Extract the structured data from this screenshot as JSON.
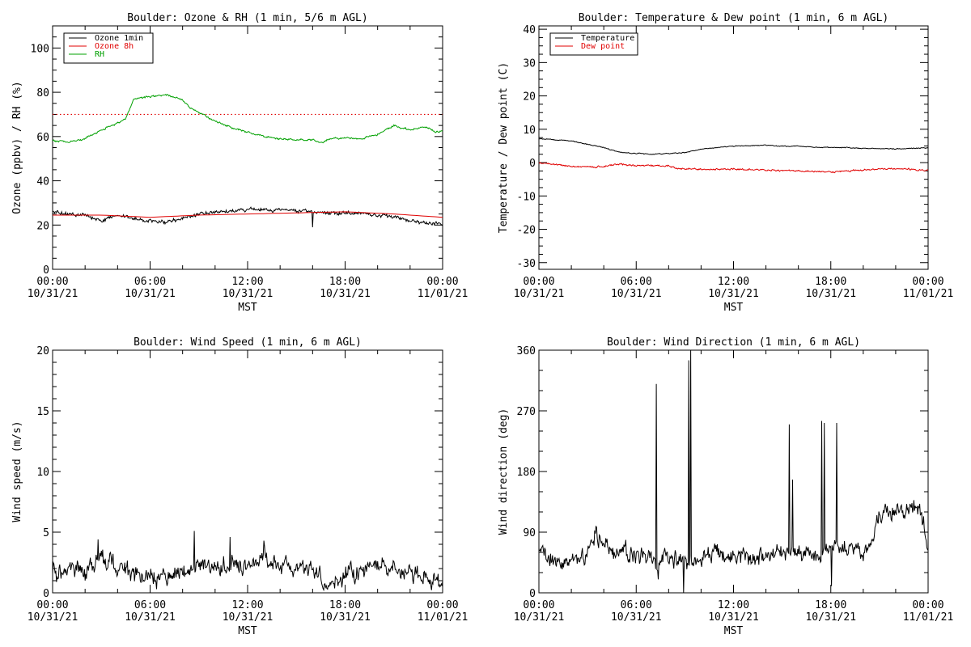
{
  "chart_data": [
    {
      "type": "line",
      "title": "Boulder: Ozone & RH (1 min, 5/6 m AGL)",
      "xlabel": "MST",
      "ylabel": "Ozone (ppbv) / RH (%)",
      "xlim": [
        "10/31/21 00:00",
        "11/01/21 00:00"
      ],
      "ylim": [
        0,
        110
      ],
      "x_ticks": [
        [
          "00:00",
          "10/31/21"
        ],
        [
          "06:00",
          "10/31/21"
        ],
        [
          "12:00",
          "10/31/21"
        ],
        [
          "18:00",
          "10/31/21"
        ],
        [
          "00:00",
          "11/01/21"
        ]
      ],
      "y_ticks": [
        0,
        20,
        40,
        60,
        80,
        100
      ],
      "legend": "top-left",
      "reference_line": {
        "y": 70,
        "color": "#e00000",
        "style": "dotted"
      },
      "series": [
        {
          "name": "Ozone 1min",
          "color": "#000000",
          "noise": 1.0,
          "spikes": [
            [
              16.0,
              19
            ]
          ],
          "points": [
            [
              0,
              26
            ],
            [
              1,
              25
            ],
            [
              2,
              24.5
            ],
            [
              3,
              22
            ],
            [
              4,
              24.5
            ],
            [
              5,
              23
            ],
            [
              6,
              22
            ],
            [
              7,
              21.5
            ],
            [
              8,
              23
            ],
            [
              9,
              25
            ],
            [
              10,
              26
            ],
            [
              11,
              26.5
            ],
            [
              12,
              27
            ],
            [
              13,
              27
            ],
            [
              14,
              27
            ],
            [
              15,
              26.5
            ],
            [
              16,
              26
            ],
            [
              17,
              25.5
            ],
            [
              18,
              25.5
            ],
            [
              19,
              25
            ],
            [
              20,
              24.5
            ],
            [
              21,
              23.5
            ],
            [
              22,
              22
            ],
            [
              23,
              21
            ],
            [
              24,
              20
            ]
          ]
        },
        {
          "name": "Ozone 8h",
          "color": "#e00000",
          "noise": 0,
          "points": [
            [
              0,
              24.5
            ],
            [
              3,
              24.5
            ],
            [
              6,
              23.5
            ],
            [
              9,
              24.5
            ],
            [
              12,
              25
            ],
            [
              15,
              25.5
            ],
            [
              18,
              26
            ],
            [
              21,
              25
            ],
            [
              24,
              23.5
            ]
          ]
        },
        {
          "name": "RH",
          "color": "#00a000",
          "noise": 0.5,
          "points": [
            [
              0,
              58
            ],
            [
              1,
              57.5
            ],
            [
              2,
              59
            ],
            [
              3,
              63
            ],
            [
              4,
              66
            ],
            [
              4.5,
              68
            ],
            [
              5,
              77
            ],
            [
              6,
              78
            ],
            [
              7,
              79
            ],
            [
              8,
              76.5
            ],
            [
              8.5,
              73
            ],
            [
              9,
              71
            ],
            [
              10,
              67
            ],
            [
              11,
              64
            ],
            [
              12,
              62
            ],
            [
              13,
              60
            ],
            [
              14,
              59
            ],
            [
              15,
              58.5
            ],
            [
              16,
              58.5
            ],
            [
              16.5,
              57
            ],
            [
              17,
              59
            ],
            [
              18,
              59.5
            ],
            [
              19,
              59
            ],
            [
              20,
              61
            ],
            [
              21,
              65
            ],
            [
              22,
              63
            ],
            [
              23,
              64.5
            ],
            [
              23.5,
              62
            ],
            [
              24,
              62.5
            ]
          ]
        }
      ]
    },
    {
      "type": "line",
      "title": "Boulder: Temperature & Dew point (1 min, 6 m AGL)",
      "xlabel": "MST",
      "ylabel": "Temperature / Dew point (C)",
      "xlim": [
        "10/31/21 00:00",
        "11/01/21 00:00"
      ],
      "ylim": [
        -32,
        41
      ],
      "x_ticks": [
        [
          "00:00",
          "10/31/21"
        ],
        [
          "06:00",
          "10/31/21"
        ],
        [
          "12:00",
          "10/31/21"
        ],
        [
          "18:00",
          "10/31/21"
        ],
        [
          "00:00",
          "11/01/21"
        ]
      ],
      "y_ticks": [
        -30,
        -20,
        -10,
        0,
        10,
        20,
        30,
        40
      ],
      "legend": "top-left",
      "series": [
        {
          "name": "Temperature",
          "color": "#000000",
          "noise": 0.15,
          "points": [
            [
              0,
              7.2
            ],
            [
              2,
              6.5
            ],
            [
              4,
              4.5
            ],
            [
              5,
              3
            ],
            [
              6,
              2.8
            ],
            [
              7,
              2.5
            ],
            [
              8,
              2.8
            ],
            [
              9,
              3
            ],
            [
              10,
              4
            ],
            [
              11,
              4.5
            ],
            [
              12,
              5
            ],
            [
              14,
              5.2
            ],
            [
              15,
              4.9
            ],
            [
              16,
              5
            ],
            [
              17,
              4.6
            ],
            [
              18,
              4.6
            ],
            [
              20,
              4.3
            ],
            [
              22,
              4.1
            ],
            [
              24,
              4.4
            ]
          ]
        },
        {
          "name": "Dew point",
          "color": "#e00000",
          "noise": 0.3,
          "points": [
            [
              0,
              0
            ],
            [
              1,
              -0.5
            ],
            [
              2,
              -1.2
            ],
            [
              4,
              -1.2
            ],
            [
              5,
              -0.3
            ],
            [
              6,
              -1
            ],
            [
              8,
              -1
            ],
            [
              8.5,
              -1.8
            ],
            [
              10,
              -2
            ],
            [
              12,
              -2
            ],
            [
              14,
              -2.2
            ],
            [
              16,
              -2.5
            ],
            [
              18,
              -2.8
            ],
            [
              20,
              -2.2
            ],
            [
              22,
              -1.8
            ],
            [
              24,
              -2.3
            ]
          ]
        }
      ]
    },
    {
      "type": "line",
      "title": "Boulder: Wind Speed (1 min, 6 m AGL)",
      "xlabel": "MST",
      "ylabel": "Wind speed (m/s)",
      "xlim": [
        "10/31/21 00:00",
        "11/01/21 00:00"
      ],
      "ylim": [
        0,
        20
      ],
      "x_ticks": [
        [
          "00:00",
          "10/31/21"
        ],
        [
          "06:00",
          "10/31/21"
        ],
        [
          "12:00",
          "10/31/21"
        ],
        [
          "18:00",
          "10/31/21"
        ],
        [
          "00:00",
          "11/01/21"
        ]
      ],
      "y_ticks": [
        0,
        5,
        10,
        15,
        20
      ],
      "series": [
        {
          "color": "#000000",
          "noise": 0.9,
          "floor": 0,
          "spikes": [
            [
              2.8,
              4.4
            ],
            [
              8.7,
              5.1
            ],
            [
              10.9,
              4.6
            ],
            [
              13.0,
              4.3
            ]
          ],
          "points": [
            [
              0,
              2
            ],
            [
              1,
              1.8
            ],
            [
              2,
              1.7
            ],
            [
              3,
              2.8
            ],
            [
              4,
              2.2
            ],
            [
              5,
              1.6
            ],
            [
              6,
              1.2
            ],
            [
              7,
              1.2
            ],
            [
              8,
              1.8
            ],
            [
              9,
              2.5
            ],
            [
              10,
              2
            ],
            [
              11,
              2.5
            ],
            [
              12,
              2.3
            ],
            [
              13,
              2.8
            ],
            [
              14,
              2.2
            ],
            [
              15,
              2
            ],
            [
              16,
              1.8
            ],
            [
              17,
              0.9
            ],
            [
              18,
              1.5
            ],
            [
              19,
              1.6
            ],
            [
              20,
              2.2
            ],
            [
              21,
              1.9
            ],
            [
              22,
              1.8
            ],
            [
              23,
              1.2
            ],
            [
              24,
              0.5
            ]
          ]
        }
      ]
    },
    {
      "type": "line",
      "title": "Boulder: Wind Direction (1 min, 6 m AGL)",
      "xlabel": "MST",
      "ylabel": "Wind direction (deg)",
      "xlim": [
        "10/31/21 00:00",
        "11/01/21 00:00"
      ],
      "ylim": [
        0,
        360
      ],
      "x_ticks": [
        [
          "00:00",
          "10/31/21"
        ],
        [
          "06:00",
          "10/31/21"
        ],
        [
          "12:00",
          "10/31/21"
        ],
        [
          "18:00",
          "10/31/21"
        ],
        [
          "00:00",
          "11/01/21"
        ]
      ],
      "y_ticks": [
        0,
        90,
        180,
        270,
        360
      ],
      "series": [
        {
          "color": "#000000",
          "noise": 16,
          "floor": 0,
          "spikes": [
            [
              7.25,
              310
            ],
            [
              7.35,
              20
            ],
            [
              8.9,
              0
            ],
            [
              9.25,
              345
            ],
            [
              9.35,
              362
            ],
            [
              15.45,
              250
            ],
            [
              15.65,
              168
            ],
            [
              17.45,
              255
            ],
            [
              17.6,
              252
            ],
            [
              18.35,
              252
            ],
            [
              18.05,
              10
            ]
          ],
          "points": [
            [
              0,
              55
            ],
            [
              1,
              45
            ],
            [
              2,
              50
            ],
            [
              3,
              58
            ],
            [
              3.5,
              85
            ],
            [
              4,
              75
            ],
            [
              5,
              55
            ],
            [
              6,
              60
            ],
            [
              7,
              50
            ],
            [
              8,
              55
            ],
            [
              9,
              45
            ],
            [
              10,
              55
            ],
            [
              11,
              60
            ],
            [
              12,
              50
            ],
            [
              13,
              50
            ],
            [
              14,
              55
            ],
            [
              15,
              60
            ],
            [
              16,
              55
            ],
            [
              16.5,
              60
            ],
            [
              17,
              55
            ],
            [
              18,
              70
            ],
            [
              19,
              65
            ],
            [
              20,
              60
            ],
            [
              20.5,
              75
            ],
            [
              21,
              115
            ],
            [
              22,
              120
            ],
            [
              23,
              125
            ],
            [
              23.5,
              120
            ],
            [
              24,
              70
            ]
          ]
        }
      ]
    }
  ]
}
